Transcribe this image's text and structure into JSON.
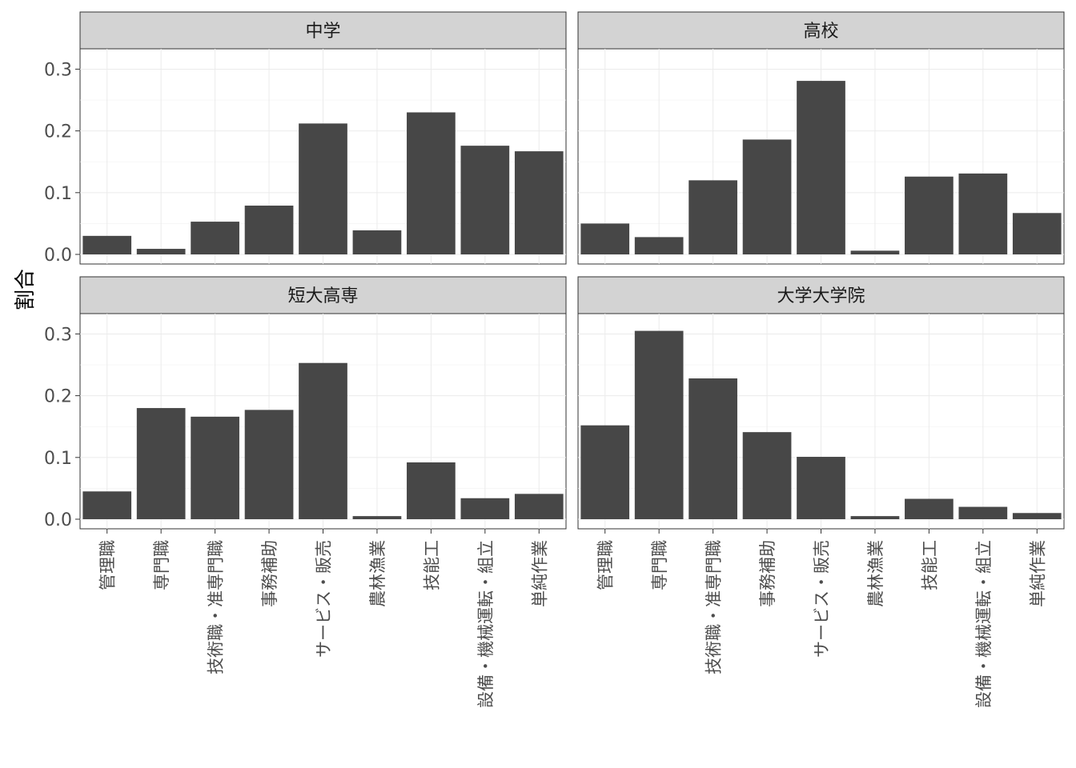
{
  "chart_data": {
    "type": "bar",
    "ylabel": "割合",
    "xlabel": "",
    "ylim": [
      0,
      0.32
    ],
    "yticks": [
      0.0,
      0.1,
      0.2,
      0.3
    ],
    "ytick_labels": [
      "0.0",
      "0.1",
      "0.2",
      "0.3"
    ],
    "grid": true,
    "facets": [
      "中学",
      "高校",
      "短大高専",
      "大学大学院"
    ],
    "categories": [
      "管理職",
      "専門職",
      "技術職・准専門職",
      "事務補助",
      "サービス・販売",
      "農林漁業",
      "技能工",
      "設備・機械運転・組立",
      "単純作業"
    ],
    "series": [
      {
        "facet": "中学",
        "values": [
          0.03,
          0.009,
          0.053,
          0.079,
          0.212,
          0.039,
          0.23,
          0.176,
          0.167
        ]
      },
      {
        "facet": "高校",
        "values": [
          0.05,
          0.028,
          0.12,
          0.186,
          0.281,
          0.006,
          0.126,
          0.131,
          0.067
        ]
      },
      {
        "facet": "短大高専",
        "values": [
          0.045,
          0.18,
          0.166,
          0.177,
          0.253,
          0.005,
          0.092,
          0.034,
          0.041
        ]
      },
      {
        "facet": "大学大学院",
        "values": [
          0.152,
          0.305,
          0.228,
          0.141,
          0.101,
          0.005,
          0.033,
          0.02,
          0.01
        ]
      }
    ],
    "colors": {
      "bar": "#474747",
      "strip": "#d3d3d3",
      "grid": "#ebebeb"
    }
  }
}
